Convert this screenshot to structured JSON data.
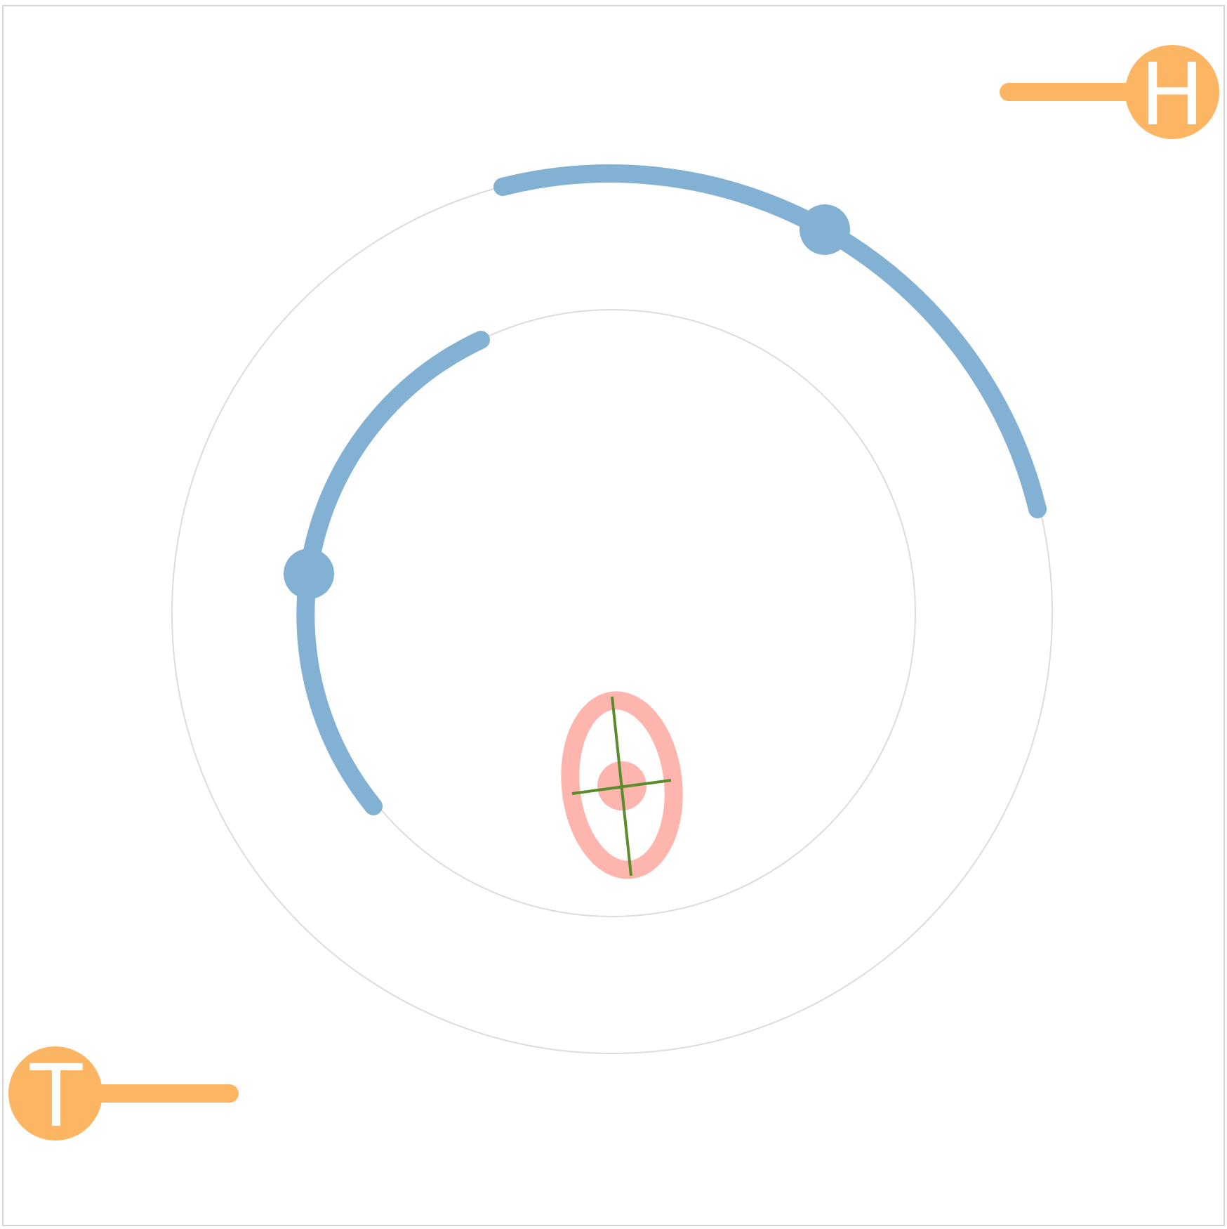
{
  "colors": {
    "frame": "#d4d4d4",
    "orbit_guide": "#dcdcdc",
    "arc": "#82b1d3",
    "knob": "#fcb563",
    "knob_letter": "#ffffff",
    "target": "#fdb5ae",
    "crosshair": "#5b8c2a"
  },
  "knobs": {
    "top_right": {
      "letter": "H",
      "icon": "knob-h-icon"
    },
    "bottom_left": {
      "letter": "T",
      "icon": "knob-t-icon"
    }
  },
  "elements": {
    "outer_orbit": "outer-orbit-ring",
    "inner_orbit": "inner-orbit-ring",
    "outer_arc": "outer-orbit-arc",
    "inner_arc": "inner-orbit-arc",
    "target": "target-ellipse",
    "crosshair": "crosshair-icon"
  }
}
